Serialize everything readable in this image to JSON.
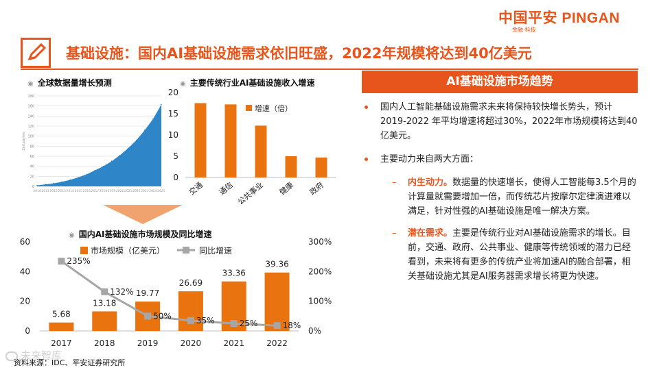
{
  "logo": {
    "main": "中国平安 PINGAN",
    "sub": "金融·科技"
  },
  "title": "基础设施：国内AI基础设施需求依旧旺盛，2022年规模将达到40亿美元",
  "colors": {
    "accent": "#e8551c",
    "bar": "#e8730f",
    "line": "#a6a6a6",
    "area": "#2e86c8"
  },
  "charts": {
    "global_title": "全球数据量增长预测",
    "industry_title": "主要传统行业AI基础设施收入增速",
    "china_title": "国内AI基础设施市场规模及同比增速"
  },
  "chart_data": [
    {
      "type": "area",
      "title": "全球数据量增长预测",
      "x": [
        "2010",
        "2011",
        "2012",
        "2013",
        "2014",
        "2015",
        "2016",
        "2017",
        "2018",
        "2019",
        "2020",
        "2021",
        "2022",
        "2023",
        "2024",
        "2025"
      ],
      "values": [
        2,
        4,
        6,
        9,
        13,
        18,
        24,
        32,
        40,
        50,
        62,
        76,
        92,
        112,
        134,
        163
      ],
      "ylim": [
        0,
        180
      ],
      "yticks": [
        "0",
        "20",
        "40",
        "60",
        "80",
        "100",
        "120",
        "140",
        "160",
        "180"
      ],
      "ylabel": "Zettabytes",
      "grid": true
    },
    {
      "type": "bar",
      "title": "主要传统行业AI基础设施收入增速",
      "categories": [
        "交通",
        "通信",
        "公共事业",
        "健康",
        "政府"
      ],
      "series": [
        {
          "name": "增速（倍）",
          "values": [
            17.5,
            17.2,
            12.2,
            5.0,
            4.7
          ]
        }
      ],
      "ylim": [
        0,
        20
      ],
      "yticks": [
        "0",
        "5",
        "10",
        "15",
        "20"
      ],
      "legend": "top-right"
    },
    {
      "type": "bar",
      "title": "国内AI基础设施市场规模及同比增速",
      "categories": [
        "2017",
        "2018",
        "2019",
        "2020",
        "2021",
        "2022"
      ],
      "series": [
        {
          "name": "市场规模（亿美元）",
          "values": [
            5.68,
            13.18,
            19.77,
            26.69,
            33.36,
            39.36
          ],
          "labels": [
            "5.68",
            "13.18",
            "19.77",
            "26.69",
            "33.36",
            "39.36"
          ]
        },
        {
          "name": "同比增速",
          "type": "line",
          "values": [
            235,
            132,
            50,
            35,
            25,
            18
          ],
          "labels": [
            "235%",
            "132%",
            "50%",
            "35%",
            "25%",
            "18%"
          ],
          "axis": "right"
        }
      ],
      "ylim": [
        0,
        60
      ],
      "yticks": [
        "0",
        "20",
        "40",
        "60"
      ],
      "y2lim": [
        0,
        300
      ],
      "y2ticks": [
        "0%",
        "100%",
        "200%",
        "300%"
      ],
      "legend": "top"
    }
  ],
  "panel": {
    "header": "AI基础设施市场趋势",
    "bullets": [
      "国内人工智能基础设施需求未来将保持较快增长势头，预计2019-2022 年平均增速将超过30%，2022年市场规模将达到40亿美元。",
      "主要动力来自两大方面："
    ],
    "sub": [
      {
        "dash": "–",
        "label": "内生动力。",
        "text": "数据量的快速增长，使得人工智能每3.5个月的计算量就需要增加一倍，而传统芯片按摩尔定律演进难以满足，针对性强的AI基础设施是唯一解决方案。"
      },
      {
        "dash": "–",
        "label": "潜在需求。",
        "text": "主要是传统行业对AI基础设施需求的增长。目前，交通、政府、公共事业、健康等传统领域的潜力已经看到，未来将有更多的传统产业将加速AI的融合部署，相关基础设施尤其是AI服务器需求增长将更为快速。"
      }
    ]
  },
  "source": "资料来源：IDC、平安证券研究所",
  "watermark": "未来智库"
}
